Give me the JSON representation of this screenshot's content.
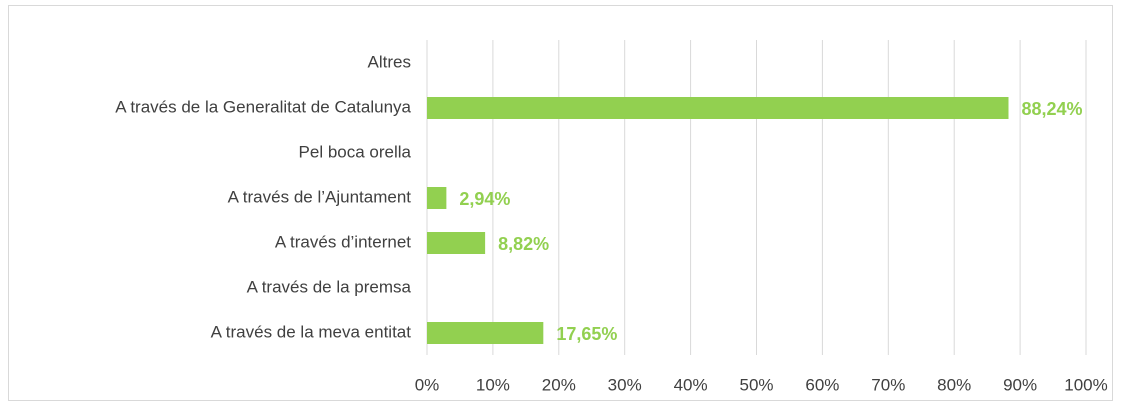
{
  "chart_data": {
    "type": "bar",
    "orientation": "horizontal",
    "categories": [
      "Altres",
      "A través de la Generalitat de Catalunya",
      "Pel boca orella",
      "A través de l’Ajuntament",
      "A través d’internet",
      "A través de la premsa",
      "A través de la meva entitat"
    ],
    "values": [
      null,
      88.24,
      null,
      2.94,
      8.82,
      null,
      17.65
    ],
    "value_labels": [
      null,
      "88,24%",
      null,
      "2,94%",
      "8,82%",
      null,
      "17,65%"
    ],
    "color": "#92d050",
    "xlim": [
      0,
      100
    ],
    "xticks": [
      {
        "value": 0,
        "label": "0%"
      },
      {
        "value": 10,
        "label": "10%"
      },
      {
        "value": 20,
        "label": "20%"
      },
      {
        "value": 30,
        "label": "30%"
      },
      {
        "value": 40,
        "label": "40%"
      },
      {
        "value": 50,
        "label": "50%"
      },
      {
        "value": 60,
        "label": "60%"
      },
      {
        "value": 70,
        "label": "70%"
      },
      {
        "value": 80,
        "label": "80%"
      },
      {
        "value": 90,
        "label": "90%"
      },
      {
        "value": 100,
        "label": "100%"
      }
    ],
    "grid": true
  }
}
